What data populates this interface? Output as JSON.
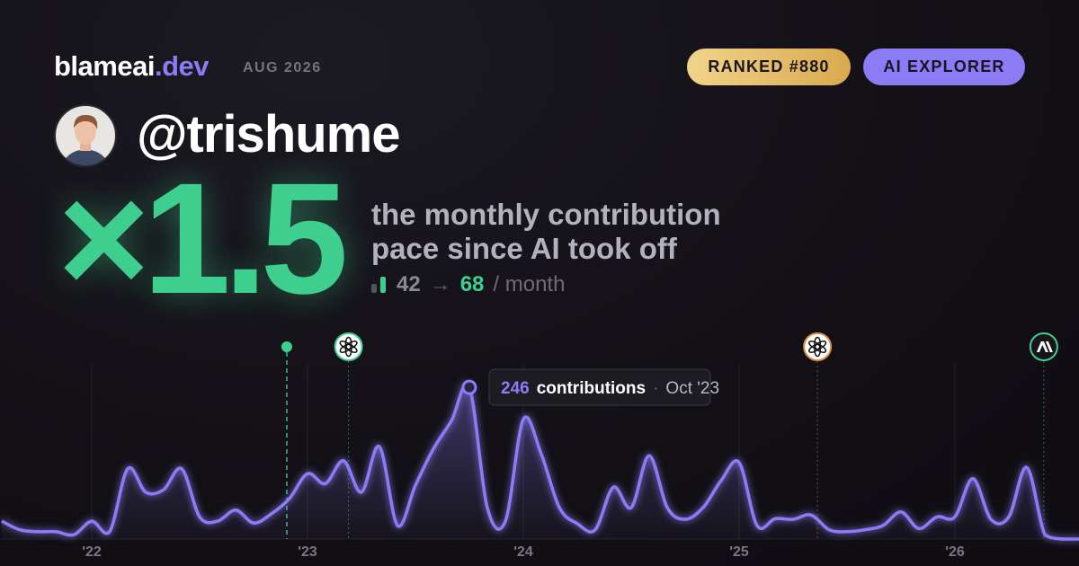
{
  "header": {
    "brand": "blameai",
    "brand_tld": ".dev",
    "date": "AUG 2026",
    "badges": [
      "RANKED #880",
      "AI EXPLORER"
    ]
  },
  "profile": {
    "handle": "@trishume"
  },
  "headline": {
    "multiplier": "×1.5",
    "caption": [
      "the monthly contribution",
      "pace since AI took off"
    ],
    "before": "42",
    "arrow": "→",
    "after": "68",
    "unit": "/ month"
  },
  "chart_data": {
    "type": "area",
    "x": [
      2021.583,
      2021.667,
      2021.75,
      2021.833,
      2021.917,
      2022,
      2022.083,
      2022.167,
      2022.25,
      2022.333,
      2022.417,
      2022.5,
      2022.583,
      2022.667,
      2022.75,
      2022.833,
      2022.917,
      2023,
      2023.083,
      2023.167,
      2023.25,
      2023.333,
      2023.417,
      2023.5,
      2023.583,
      2023.667,
      2023.75,
      2023.833,
      2023.917,
      2024,
      2024.083,
      2024.167,
      2024.25,
      2024.333,
      2024.417,
      2024.5,
      2024.583,
      2024.667,
      2024.75,
      2024.833,
      2024.917,
      2025,
      2025.083,
      2025.167,
      2025.25,
      2025.333,
      2025.417,
      2025.5,
      2025.583,
      2025.667,
      2025.75,
      2025.833,
      2025.917,
      2026,
      2026.083,
      2026.167,
      2026.25,
      2026.333,
      2026.417,
      2026.5,
      2026.583
    ],
    "values": [
      29,
      15,
      12,
      12,
      7,
      29,
      12,
      114,
      76,
      80,
      114,
      36,
      29,
      47,
      26,
      41,
      66,
      106,
      90,
      127,
      76,
      150,
      22,
      87,
      146,
      192,
      246,
      51,
      29,
      194,
      138,
      51,
      25,
      15,
      84,
      51,
      135,
      51,
      32,
      51,
      95,
      124,
      22,
      33,
      32,
      39,
      15,
      12,
      15,
      22,
      44,
      17,
      36,
      36,
      98,
      32,
      36,
      116,
      7,
      0,
      0
    ],
    "color": "#8b7cf6",
    "xlim": [
      2021.575,
      2026.575
    ],
    "ylim": [
      0,
      284
    ],
    "xticks": [
      {
        "value": 2022,
        "label": "'22"
      },
      {
        "value": 2023,
        "label": "'23"
      },
      {
        "value": 2024,
        "label": "'24"
      },
      {
        "value": 2025,
        "label": "'25"
      },
      {
        "value": 2026,
        "label": "'26"
      }
    ],
    "grid": true,
    "tooltip": {
      "unit": "contributions",
      "separator": "·",
      "date": "Oct '23"
    },
    "events": [
      {
        "x": 2022.904,
        "color": "#3ecf8e"
      },
      {
        "x": 2023.19,
        "color": "#3ecf8e"
      },
      {
        "x": 2025.363,
        "color": "#d98b4a"
      },
      {
        "x": 2026.412,
        "color": "#3ecf8e"
      }
    ]
  }
}
